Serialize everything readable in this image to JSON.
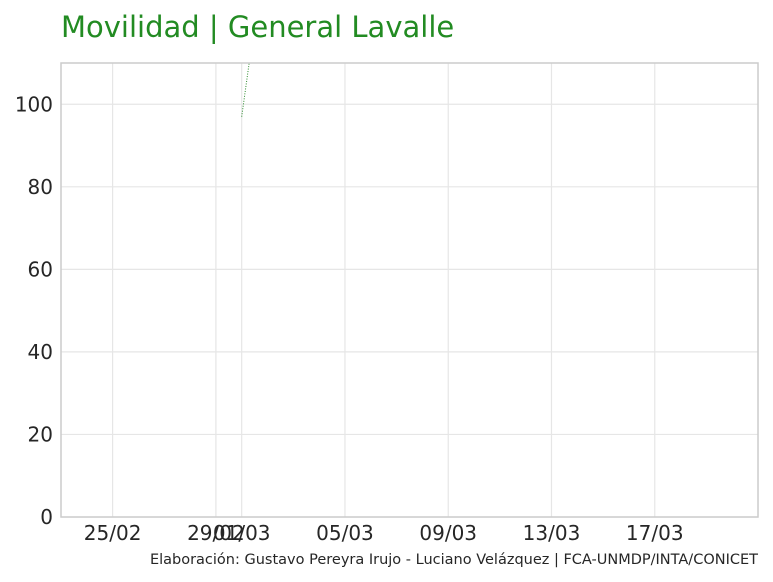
{
  "chart_data": {
    "type": "line",
    "title": "Movilidad | General Lavalle",
    "caption": "Elaboración: Gustavo Pereyra Irujo - Luciano Velázquez | FCA-UNMDP/INTA/CONICET",
    "xlabel": "",
    "ylabel": "",
    "x_ticks": [
      "2020-02-25",
      "2020-02-29",
      "2020-03-01",
      "2020-03-05",
      "2020-03-09",
      "2020-03-13",
      "2020-03-17"
    ],
    "x_tick_labels": [
      "25/02",
      "29/02",
      "01/03",
      "05/03",
      "09/03",
      "13/03",
      "17/03"
    ],
    "y_ticks": [
      0,
      20,
      40,
      60,
      80,
      100
    ],
    "xlim": [
      "2020-02-23",
      "2020-03-21"
    ],
    "ylim": [
      0,
      110
    ],
    "grid": true,
    "series": [
      {
        "name": "",
        "color": "#2e8b2e",
        "line_style": "dotted",
        "points": [
          {
            "x": "2020-03-01",
            "y": 97
          },
          {
            "x": "2020-03-01T08:00",
            "y": 112
          }
        ]
      }
    ]
  },
  "colors": {
    "title": "#228b22",
    "grid": "#e6e6e6",
    "frame": "#cccccc",
    "series": "#2e8b2e"
  }
}
